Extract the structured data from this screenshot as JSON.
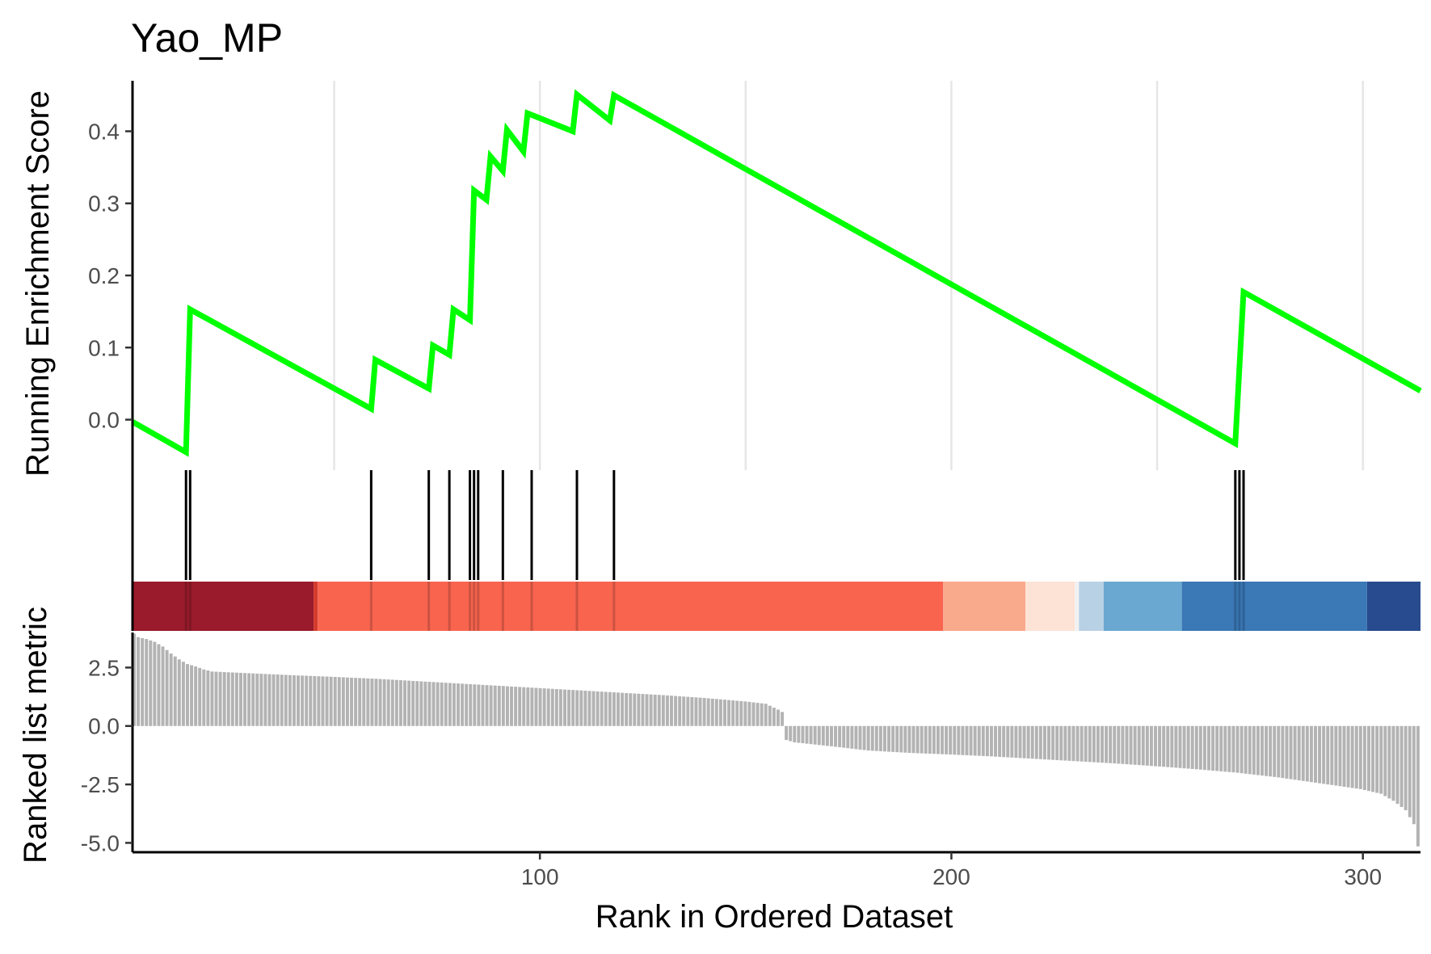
{
  "chart_data": {
    "type": "line",
    "title": "Yao_MP",
    "xlabel": "Rank in Ordered Dataset",
    "xlim": [
      1,
      314
    ],
    "xticks": [
      100,
      200,
      300
    ],
    "colors": {
      "running_score": "#00ff00",
      "hits": "#000000",
      "metric_bars": "#b3b3b3",
      "grid": "#e6e6e6"
    },
    "panels": [
      {
        "name": "running-enrichment-score",
        "ylabel": "Running Enrichment Score",
        "ylim": [
          -0.07,
          0.47
        ],
        "yticks": [
          "0.0",
          "0.1",
          "0.2",
          "0.3",
          "0.4"
        ],
        "grid": "vertical",
        "series": [
          {
            "x": [
              1,
              14,
              15,
              59,
              60,
              73,
              74,
              78,
              79,
              83,
              84,
              87,
              88,
              91,
              92,
              96,
              97,
              108,
              109,
              117,
              118,
              269,
              271,
              314
            ],
            "y": [
              -0.003,
              -0.045,
              0.153,
              0.015,
              0.083,
              0.043,
              0.103,
              0.09,
              0.153,
              0.138,
              0.318,
              0.305,
              0.365,
              0.345,
              0.402,
              0.372,
              0.425,
              0.4,
              0.451,
              0.415,
              0.45,
              -0.033,
              0.177,
              0.04
            ]
          }
        ]
      },
      {
        "name": "gene-hits",
        "hit_ranks": [
          14,
          15,
          59,
          73,
          78,
          83,
          84,
          85,
          91,
          98,
          109,
          118,
          269,
          270,
          271
        ]
      },
      {
        "name": "ranking-color-strip",
        "segments": [
          {
            "from": 1,
            "to": 45,
            "color": "#9a1b2b"
          },
          {
            "from": 45,
            "to": 46,
            "color": "#d53a2c"
          },
          {
            "from": 46,
            "to": 198,
            "color": "#f9644f"
          },
          {
            "from": 198,
            "to": 218,
            "color": "#f9a98c"
          },
          {
            "from": 218,
            "to": 230,
            "color": "#fde2d6"
          },
          {
            "from": 230,
            "to": 231,
            "color": "#f1f1f1"
          },
          {
            "from": 231,
            "to": 237,
            "color": "#b8d1e5"
          },
          {
            "from": 237,
            "to": 256,
            "color": "#6aa8d1"
          },
          {
            "from": 256,
            "to": 301,
            "color": "#3a78b6"
          },
          {
            "from": 301,
            "to": 314,
            "color": "#274b8e"
          }
        ]
      },
      {
        "name": "ranked-list-metric",
        "ylabel": "Ranked list metric",
        "ylim": [
          -5.4,
          4.0
        ],
        "yticks": [
          "2.5",
          "0.0",
          "-2.5",
          "-5.0"
        ],
        "metric_profile": [
          [
            1,
            3.95
          ],
          [
            2,
            3.8
          ],
          [
            4,
            3.72
          ],
          [
            6,
            3.6
          ],
          [
            8,
            3.4
          ],
          [
            10,
            3.1
          ],
          [
            12,
            2.85
          ],
          [
            14,
            2.65
          ],
          [
            16,
            2.55
          ],
          [
            18,
            2.42
          ],
          [
            20,
            2.33
          ],
          [
            30,
            2.25
          ],
          [
            40,
            2.17
          ],
          [
            50,
            2.1
          ],
          [
            60,
            2.02
          ],
          [
            70,
            1.92
          ],
          [
            80,
            1.82
          ],
          [
            90,
            1.72
          ],
          [
            100,
            1.62
          ],
          [
            110,
            1.52
          ],
          [
            120,
            1.42
          ],
          [
            130,
            1.32
          ],
          [
            140,
            1.2
          ],
          [
            150,
            1.05
          ],
          [
            155,
            0.95
          ],
          [
            158,
            0.7
          ],
          [
            159,
            0.6
          ],
          [
            160,
            -0.6
          ],
          [
            162,
            -0.7
          ],
          [
            170,
            -0.85
          ],
          [
            180,
            -1.05
          ],
          [
            190,
            -1.15
          ],
          [
            200,
            -1.22
          ],
          [
            210,
            -1.3
          ],
          [
            220,
            -1.4
          ],
          [
            230,
            -1.5
          ],
          [
            240,
            -1.6
          ],
          [
            250,
            -1.72
          ],
          [
            260,
            -1.85
          ],
          [
            270,
            -2.0
          ],
          [
            280,
            -2.2
          ],
          [
            290,
            -2.45
          ],
          [
            300,
            -2.7
          ],
          [
            305,
            -2.9
          ],
          [
            308,
            -3.2
          ],
          [
            311,
            -3.6
          ],
          [
            313,
            -4.2
          ],
          [
            314,
            -5.15
          ]
        ]
      }
    ]
  }
}
